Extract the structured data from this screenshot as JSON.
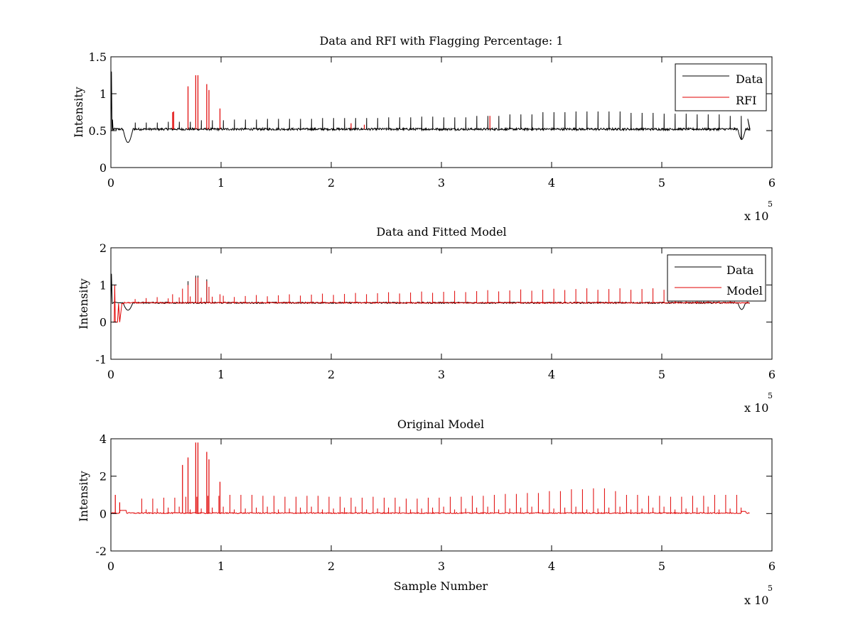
{
  "chart_data": [
    {
      "type": "line",
      "title": "Data and RFI with Flagging Percentage: 1",
      "xlabel": "",
      "ylabel": "Intensity",
      "xlim": [
        0,
        6
      ],
      "ylim": [
        0,
        1.5
      ],
      "xticks": [
        "0",
        "1",
        "2",
        "3",
        "4",
        "5",
        "6"
      ],
      "yticks": [
        "0",
        "0.5",
        "1",
        "1.5"
      ],
      "x_multiplier": {
        "base": "x 10",
        "exponent": "5"
      },
      "legend": {
        "position": "top-right",
        "entries": [
          "Data",
          "RFI"
        ]
      },
      "grid": false,
      "series": [
        {
          "name": "Data",
          "color": "#000000",
          "baseline": 0.52,
          "features": [
            {
              "x": 0.005,
              "y": 1.3
            },
            {
              "x": 0.015,
              "y": 0.65
            },
            {
              "x": 0.16,
              "y": 0.34,
              "dip": true
            },
            {
              "x": 5.72,
              "y": 0.38,
              "dip": true
            },
            {
              "x": 5.78,
              "y": 0.66
            }
          ],
          "spike_heights": [
            0.61,
            0.62,
            0.64,
            0.65,
            0.66,
            0.66,
            0.67,
            0.67,
            0.68,
            0.69,
            0.68,
            0.7,
            0.72,
            0.75,
            0.76,
            0.76,
            0.74,
            0.73,
            0.72,
            0.7
          ]
        },
        {
          "name": "RFI",
          "color": "#e00000",
          "spikes": [
            {
              "x": 0.56,
              "y": 0.75
            },
            {
              "x": 0.57,
              "y": 0.76
            },
            {
              "x": 0.7,
              "y": 1.1
            },
            {
              "x": 0.77,
              "y": 1.25
            },
            {
              "x": 0.79,
              "y": 1.25
            },
            {
              "x": 0.87,
              "y": 1.13
            },
            {
              "x": 0.89,
              "y": 1.05
            },
            {
              "x": 0.99,
              "y": 0.8
            },
            {
              "x": 2.18,
              "y": 0.6
            },
            {
              "x": 2.3,
              "y": 0.58
            },
            {
              "x": 3.44,
              "y": 0.7
            }
          ]
        }
      ]
    },
    {
      "type": "line",
      "title": "Data and Fitted Model",
      "xlabel": "",
      "ylabel": "Intensity",
      "xlim": [
        0,
        6
      ],
      "ylim": [
        -1,
        2
      ],
      "xticks": [
        "0",
        "1",
        "2",
        "3",
        "4",
        "5",
        "6"
      ],
      "yticks": [
        "-1",
        "0",
        "1",
        "2"
      ],
      "x_multiplier": {
        "base": "x 10",
        "exponent": "5"
      },
      "legend": {
        "position": "top-right",
        "entries": [
          "Data",
          "Model"
        ]
      },
      "grid": false,
      "series": [
        {
          "name": "Data",
          "color": "#000000",
          "baseline": 0.52
        },
        {
          "name": "Model",
          "color": "#e00000",
          "baseline": 0.52
        }
      ]
    },
    {
      "type": "line",
      "title": "Original Model",
      "xlabel": "Sample Number",
      "ylabel": "Intensity",
      "xlim": [
        0,
        6
      ],
      "ylim": [
        -2,
        4
      ],
      "xticks": [
        "0",
        "1",
        "2",
        "3",
        "4",
        "5",
        "6"
      ],
      "yticks": [
        "-2",
        "0",
        "2",
        "4"
      ],
      "x_multiplier": {
        "base": "x 10",
        "exponent": "5"
      },
      "legend": null,
      "grid": false,
      "series": [
        {
          "color": "#e00000",
          "baseline": 0.02,
          "spikes": [
            {
              "x": 0.04,
              "y": 1.0
            },
            {
              "x": 0.08,
              "y": 0.6
            },
            {
              "x": 0.65,
              "y": 2.6
            },
            {
              "x": 0.7,
              "y": 3.0
            },
            {
              "x": 0.77,
              "y": 3.8
            },
            {
              "x": 0.79,
              "y": 3.8
            },
            {
              "x": 0.87,
              "y": 3.3
            },
            {
              "x": 0.89,
              "y": 2.9
            },
            {
              "x": 0.99,
              "y": 1.7
            }
          ],
          "spike_heights": [
            0.8,
            0.85,
            0.9,
            0.95,
            1.0,
            1.0,
            0.95,
            0.9,
            0.95,
            0.9,
            0.85,
            0.9,
            0.85,
            0.8,
            0.85,
            0.9,
            0.95,
            1.0,
            1.05,
            1.1,
            1.2,
            1.3,
            1.35,
            1.2,
            1.0,
            0.95,
            0.9,
            0.95,
            1.0,
            1.0
          ]
        }
      ]
    }
  ]
}
